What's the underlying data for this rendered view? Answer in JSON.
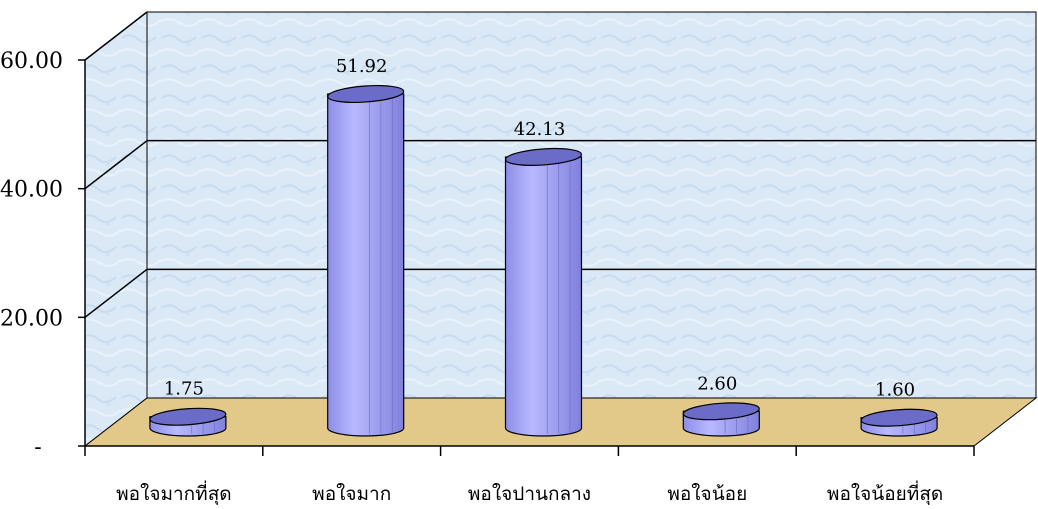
{
  "chart_data": {
    "type": "bar",
    "categories": [
      "พอใจมากที่สุด",
      "พอใจมาก",
      "พอใจปานกลาง",
      "พอใจน้อย",
      "พอใจน้อยที่สุด"
    ],
    "values": [
      1.75,
      51.92,
      42.13,
      2.6,
      1.6
    ],
    "value_labels": [
      "1.75",
      "51.92",
      "42.13",
      "2.60",
      "1.60"
    ],
    "yticks": [
      0,
      20,
      40,
      60
    ],
    "ytick_labels": [
      "-",
      "20.00",
      "40.00",
      "60.00"
    ],
    "ylim": [
      0,
      60
    ],
    "grid": true,
    "legend": "none",
    "three_d": true,
    "colors": {
      "bar_side": "#9a9af0",
      "bar_top": "#6b6bc8",
      "wall": "#dbe9f6",
      "floor": "#e2c98a",
      "gridline": "#000000"
    }
  }
}
